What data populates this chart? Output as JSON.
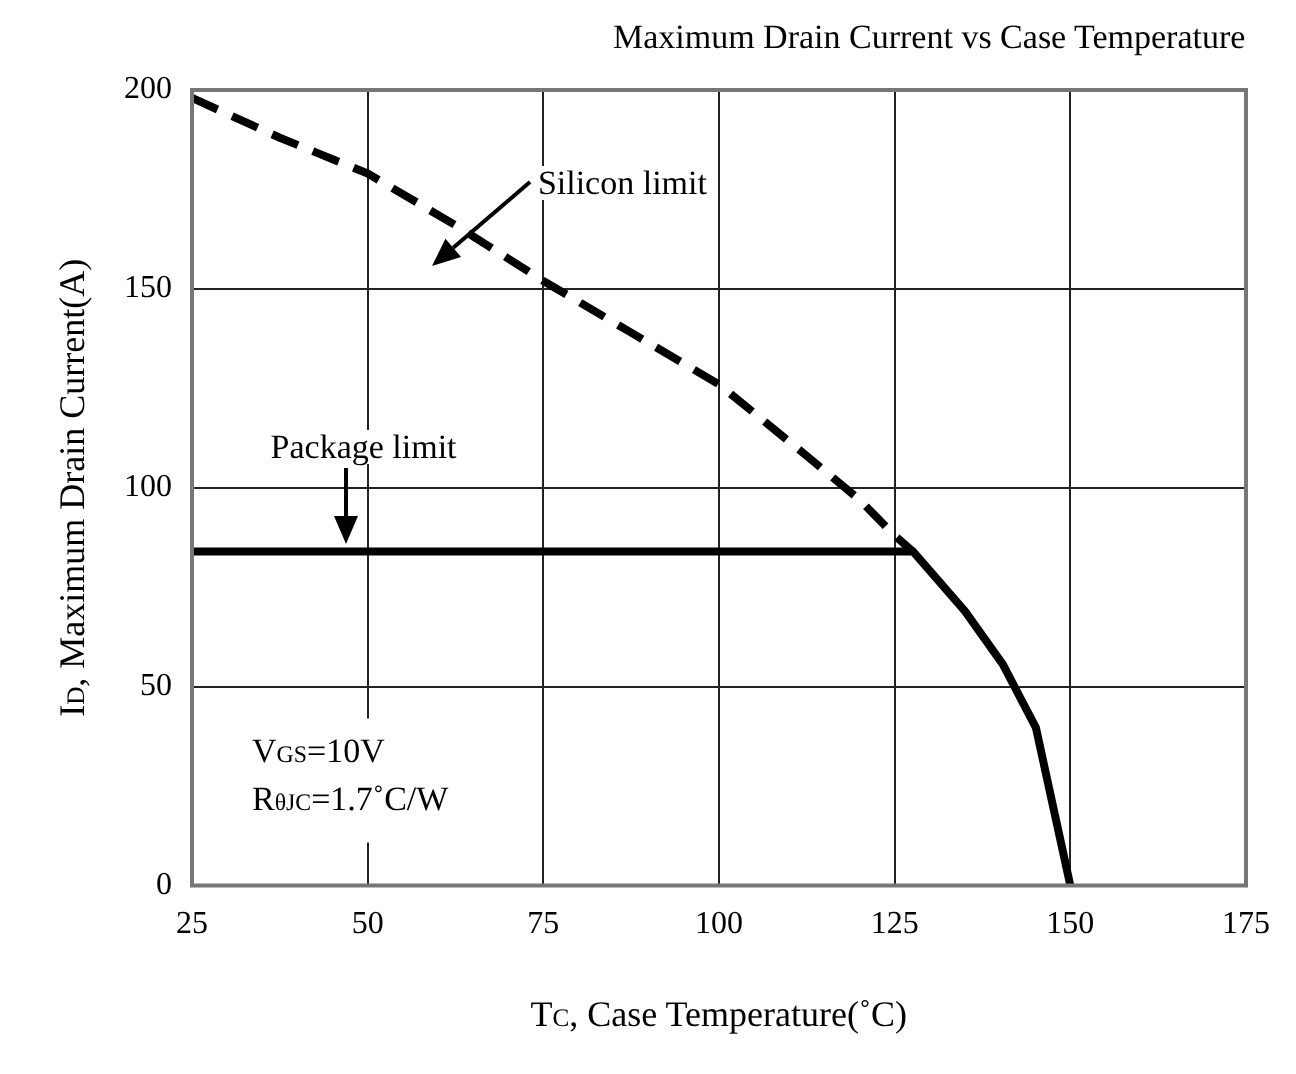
{
  "chart_data": {
    "type": "line",
    "title": "Maximum Drain Current vs Case Temperature",
    "xlabel": "T$_{C}$, Case Temperature(˚C)",
    "ylabel": "I$_{D}$, Maximum Drain Current(A)",
    "xlim": [
      25,
      175
    ],
    "xticks": [
      25,
      50,
      75,
      100,
      125,
      150,
      175
    ],
    "ylim": [
      0,
      200
    ],
    "yticks": [
      0,
      50,
      100,
      150,
      200
    ],
    "grid": true,
    "marker": "none",
    "series": [
      {
        "color": "#000000",
        "line_style": "dashed",
        "x": [
          25,
          37.5,
          50,
          62.5,
          75,
          87.5,
          100,
          112.5,
          120,
          125,
          127.6
        ],
        "values": [
          198,
          188,
          179,
          166,
          152,
          139,
          126,
          108,
          97,
          88,
          84
        ]
      },
      {
        "color": "#000000",
        "line_style": "solid",
        "x": [
          25,
          127.6,
          135,
          140.4,
          145.1,
          150
        ],
        "values": [
          84,
          84,
          69,
          55.6,
          39.7,
          0
        ]
      }
    ],
    "annotations": [
      "Silicon limit",
      {
        "text": "Package limit",
        "x": 47,
        "y": 84
      },
      "V$_{GS}$=10V",
      "R$_{θJC}$=1.7˚C/W"
    ]
  }
}
